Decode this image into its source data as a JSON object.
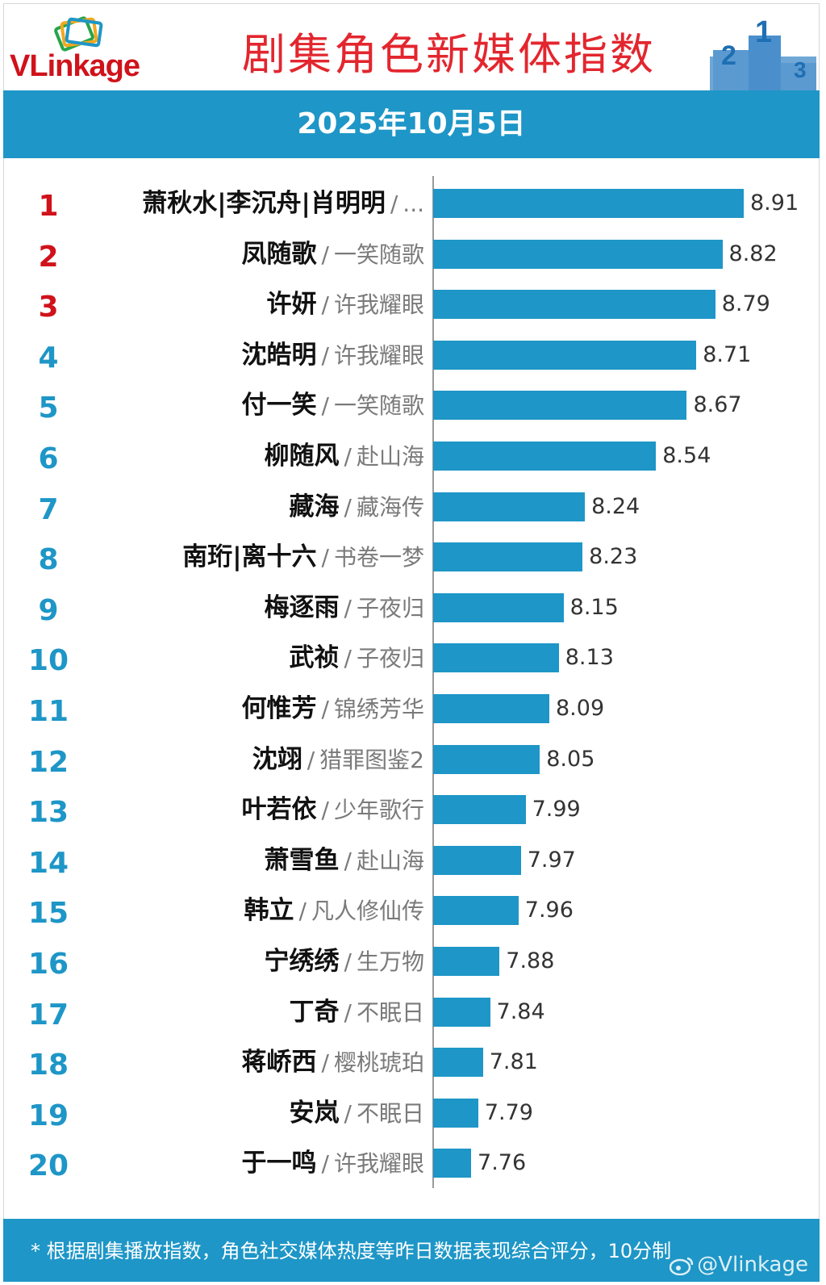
{
  "brand": {
    "logo_text_v": "V",
    "logo_text_rest": "Linkage"
  },
  "header": {
    "title": "剧集角色新媒体指数",
    "date": "2025年10月5日"
  },
  "footer": {
    "note": "* 根据剧集播放指数，角色社交媒体热度等昨日数据表现综合评分，10分制",
    "watermark": "@Vlinkage"
  },
  "colors": {
    "bar": "#1e96c7",
    "title": "#e3262e",
    "rank_top3": "#d0121b",
    "rank_other": "#1e96c7"
  },
  "chart_data": {
    "type": "bar",
    "orientation": "horizontal",
    "title": "剧集角色新媒体指数",
    "categories": [
      {
        "rank": "1",
        "name": "萧秋水|李沉舟|肖明明",
        "show": "..."
      },
      {
        "rank": "2",
        "name": "凤随歌",
        "show": "一笑随歌"
      },
      {
        "rank": "3",
        "name": "许妍",
        "show": "许我耀眼"
      },
      {
        "rank": "4",
        "name": "沈皓明",
        "show": "许我耀眼"
      },
      {
        "rank": "5",
        "name": "付一笑",
        "show": "一笑随歌"
      },
      {
        "rank": "6",
        "name": "柳随风",
        "show": "赴山海"
      },
      {
        "rank": "7",
        "name": "藏海",
        "show": "藏海传"
      },
      {
        "rank": "8",
        "name": "南珩|离十六",
        "show": "书卷一梦"
      },
      {
        "rank": "9",
        "name": "梅逐雨",
        "show": "子夜归"
      },
      {
        "rank": "10",
        "name": "武祯",
        "show": "子夜归"
      },
      {
        "rank": "11",
        "name": "何惟芳",
        "show": "锦绣芳华"
      },
      {
        "rank": "12",
        "name": "沈翊",
        "show": "猎罪图鉴2"
      },
      {
        "rank": "13",
        "name": "叶若依",
        "show": "少年歌行"
      },
      {
        "rank": "14",
        "name": "萧雪鱼",
        "show": "赴山海"
      },
      {
        "rank": "15",
        "name": "韩立",
        "show": "凡人修仙传"
      },
      {
        "rank": "16",
        "name": "宁绣绣",
        "show": "生万物"
      },
      {
        "rank": "17",
        "name": "丁奇",
        "show": "不眠日"
      },
      {
        "rank": "18",
        "name": "蒋峤西",
        "show": "樱桃琥珀"
      },
      {
        "rank": "19",
        "name": "安岚",
        "show": "不眠日"
      },
      {
        "rank": "20",
        "name": "于一鸣",
        "show": "许我耀眼"
      }
    ],
    "values": [
      "8.91",
      "8.82",
      "8.79",
      "8.71",
      "8.67",
      "8.54",
      "8.24",
      "8.23",
      "8.15",
      "8.13",
      "8.09",
      "8.05",
      "7.99",
      "7.97",
      "7.96",
      "7.88",
      "7.84",
      "7.81",
      "7.79",
      "7.76"
    ],
    "separator": "/",
    "xlim": [
      7.6,
      8.91
    ],
    "grid": false,
    "legend": "none"
  }
}
